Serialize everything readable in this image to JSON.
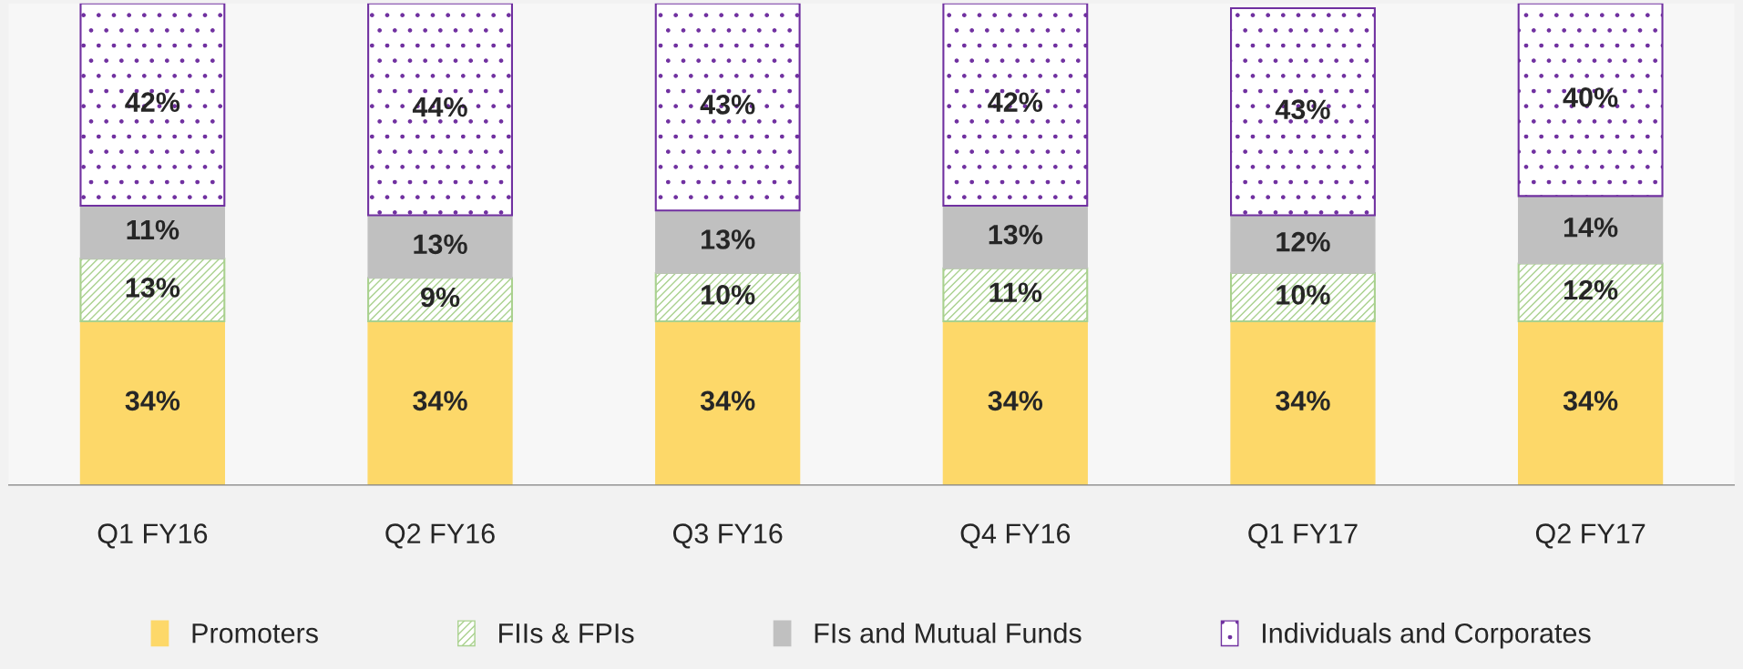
{
  "chart_data": {
    "type": "bar",
    "stacked": true,
    "categories": [
      "Q1 FY16",
      "Q2 FY16",
      "Q3 FY16",
      "Q4 FY16",
      "Q1 FY17",
      "Q2 FY17"
    ],
    "series": [
      {
        "name": "Promoters",
        "color": "#fdd869",
        "values": [
          34,
          34,
          34,
          34,
          34,
          34
        ],
        "value_labels": [
          "34%",
          "34%",
          "34%",
          "34%",
          "34%",
          "34%"
        ]
      },
      {
        "name": "FIIs & FPIs",
        "color": "#a9d18e",
        "values": [
          13,
          9,
          10,
          11,
          10,
          12
        ],
        "value_labels": [
          "13%",
          "9%",
          "10%",
          "11%",
          "10%",
          "12%"
        ]
      },
      {
        "name": "FIs and Mutual Funds",
        "color": "#c0c0c0",
        "values": [
          11,
          13,
          13,
          13,
          12,
          14
        ],
        "value_labels": [
          "11%",
          "13%",
          "13%",
          "13%",
          "12%",
          "14%"
        ]
      },
      {
        "name": "Individuals and Corporates",
        "color": "#7030a0",
        "values": [
          42,
          44,
          43,
          42,
          43,
          40
        ],
        "value_labels": [
          "42%",
          "44%",
          "43%",
          "42%",
          "43%",
          "40%"
        ]
      }
    ],
    "tick_labels": "x",
    "grid": false,
    "legend": "bottom"
  }
}
